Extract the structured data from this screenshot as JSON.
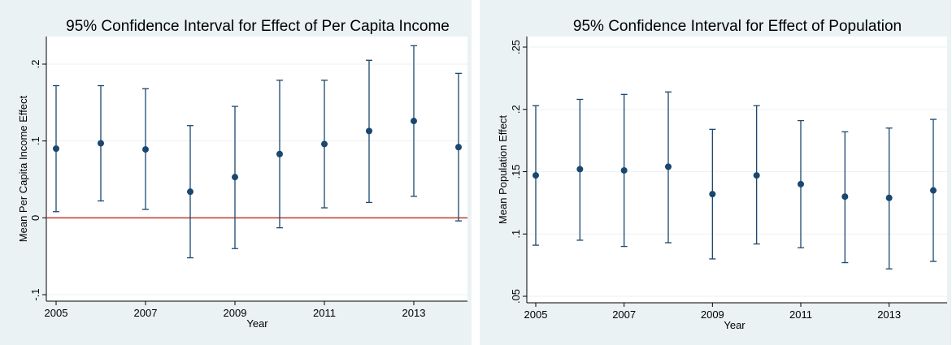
{
  "chart_data": [
    {
      "type": "scatter",
      "title": "95% Confidence Interval for Effect of Per Capita Income",
      "xlabel": "Year",
      "ylabel": "Mean Per Capita Income Effect",
      "xlim": [
        2005,
        2014
      ],
      "ylim": [
        -0.1,
        0.2
      ],
      "yticks": [
        -0.1,
        0,
        0.1,
        0.2
      ],
      "ytick_labels": [
        "-.1",
        "0",
        ".1",
        ".2"
      ],
      "xticks": [
        2005,
        2007,
        2009,
        2011,
        2013
      ],
      "xtick_labels": [
        "2005",
        "2007",
        "2009",
        "2011",
        "2013"
      ],
      "reference_line": {
        "y": 0,
        "color": "#c0392b"
      },
      "grid": true,
      "series": [
        {
          "x": [
            2005,
            2006,
            2007,
            2008,
            2009,
            2010,
            2011,
            2012,
            2013,
            2014
          ],
          "mean": [
            0.09,
            0.097,
            0.089,
            0.034,
            0.053,
            0.083,
            0.096,
            0.113,
            0.126,
            0.092
          ],
          "lower": [
            0.008,
            0.022,
            0.011,
            -0.052,
            -0.04,
            -0.013,
            0.013,
            0.02,
            0.028,
            -0.004
          ],
          "upper": [
            0.172,
            0.172,
            0.168,
            0.12,
            0.145,
            0.179,
            0.179,
            0.205,
            0.224,
            0.188
          ]
        }
      ]
    },
    {
      "type": "scatter",
      "title": "95% Confidence Interval for Effect of Population",
      "xlabel": "Year",
      "ylabel": "Mean Population Effect",
      "xlim": [
        2005,
        2014
      ],
      "ylim": [
        0.05,
        0.25
      ],
      "yticks": [
        0.05,
        0.1,
        0.15,
        0.2,
        0.25
      ],
      "ytick_labels": [
        ".05",
        ".1",
        ".15",
        ".2",
        ".25"
      ],
      "xticks": [
        2005,
        2007,
        2009,
        2011,
        2013
      ],
      "xtick_labels": [
        "2005",
        "2007",
        "2009",
        "2011",
        "2013"
      ],
      "grid": true,
      "series": [
        {
          "x": [
            2005,
            2006,
            2007,
            2008,
            2009,
            2010,
            2011,
            2012,
            2013,
            2014
          ],
          "mean": [
            0.147,
            0.152,
            0.151,
            0.154,
            0.132,
            0.147,
            0.14,
            0.13,
            0.129,
            0.135
          ],
          "lower": [
            0.091,
            0.095,
            0.09,
            0.093,
            0.08,
            0.092,
            0.089,
            0.077,
            0.072,
            0.078
          ],
          "upper": [
            0.203,
            0.208,
            0.212,
            0.214,
            0.184,
            0.203,
            0.191,
            0.182,
            0.185,
            0.192
          ]
        }
      ]
    }
  ],
  "colors": {
    "panel_bg": "#eaf2f3",
    "plot_bg": "#ffffff",
    "marker": "#1a476f",
    "grid": "#eaf2f3",
    "reference": "#c0392b"
  }
}
